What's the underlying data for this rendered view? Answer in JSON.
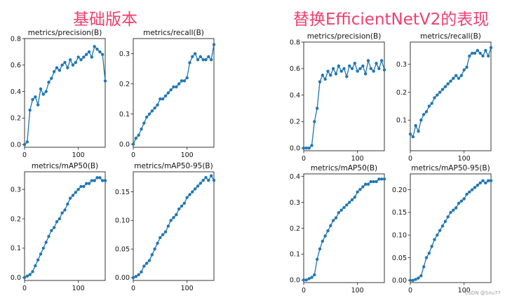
{
  "headings": {
    "left": "基础版本",
    "right": "替换EfficientNetV2的表现"
  },
  "watermark": "CSDN @Snu77",
  "chart_data": [
    {
      "type": "line",
      "title": "metrics/precision(B)",
      "xlim": [
        0,
        150
      ],
      "ylim": [
        -0.02,
        0.8
      ],
      "xticks": [
        0,
        100
      ],
      "yticks": [
        0.0,
        0.2,
        0.4,
        0.6,
        0.8
      ],
      "x": [
        0,
        5,
        10,
        15,
        20,
        25,
        30,
        35,
        40,
        45,
        50,
        55,
        60,
        65,
        70,
        75,
        80,
        85,
        90,
        95,
        100,
        105,
        110,
        115,
        120,
        125,
        130,
        135,
        140,
        145,
        150
      ],
      "series": [
        {
          "values": [
            0.0,
            0.02,
            0.26,
            0.34,
            0.36,
            0.3,
            0.42,
            0.38,
            0.4,
            0.47,
            0.5,
            0.55,
            0.58,
            0.56,
            0.6,
            0.62,
            0.58,
            0.64,
            0.6,
            0.62,
            0.66,
            0.64,
            0.66,
            0.68,
            0.7,
            0.66,
            0.74,
            0.72,
            0.7,
            0.68,
            0.48
          ]
        }
      ]
    },
    {
      "type": "line",
      "title": "metrics/recall(B)",
      "xlim": [
        0,
        150
      ],
      "ylim": [
        -0.01,
        0.35
      ],
      "xticks": [
        0,
        100
      ],
      "yticks": [
        0.0,
        0.1,
        0.2,
        0.3
      ],
      "x": [
        0,
        5,
        10,
        15,
        20,
        25,
        30,
        35,
        40,
        45,
        50,
        55,
        60,
        65,
        70,
        75,
        80,
        85,
        90,
        95,
        100,
        105,
        110,
        115,
        120,
        125,
        130,
        135,
        140,
        145,
        150
      ],
      "series": [
        {
          "values": [
            0.0,
            0.02,
            0.03,
            0.05,
            0.07,
            0.09,
            0.1,
            0.11,
            0.12,
            0.13,
            0.15,
            0.15,
            0.16,
            0.17,
            0.18,
            0.19,
            0.19,
            0.2,
            0.21,
            0.21,
            0.22,
            0.27,
            0.29,
            0.3,
            0.28,
            0.29,
            0.28,
            0.28,
            0.29,
            0.28,
            0.33
          ]
        }
      ]
    },
    {
      "type": "line",
      "title": "metrics/mAP50(B)",
      "xlim": [
        0,
        150
      ],
      "ylim": [
        -0.01,
        0.36
      ],
      "xticks": [
        0,
        100
      ],
      "yticks": [
        0.0,
        0.1,
        0.2,
        0.3
      ],
      "x": [
        0,
        5,
        10,
        15,
        20,
        25,
        30,
        35,
        40,
        45,
        50,
        55,
        60,
        65,
        70,
        75,
        80,
        85,
        90,
        95,
        100,
        105,
        110,
        115,
        120,
        125,
        130,
        135,
        140,
        145,
        150
      ],
      "series": [
        {
          "values": [
            0.0,
            0.005,
            0.01,
            0.02,
            0.04,
            0.06,
            0.08,
            0.1,
            0.12,
            0.14,
            0.16,
            0.17,
            0.19,
            0.2,
            0.22,
            0.23,
            0.25,
            0.27,
            0.28,
            0.29,
            0.3,
            0.31,
            0.31,
            0.32,
            0.32,
            0.33,
            0.33,
            0.34,
            0.34,
            0.33,
            0.33
          ]
        }
      ]
    },
    {
      "type": "line",
      "title": "metrics/mAP50-95(B)",
      "xlim": [
        0,
        150
      ],
      "ylim": [
        -0.005,
        0.185
      ],
      "xticks": [
        0,
        100
      ],
      "yticks": [
        0.0,
        0.05,
        0.1,
        0.15
      ],
      "x": [
        0,
        5,
        10,
        15,
        20,
        25,
        30,
        35,
        40,
        45,
        50,
        55,
        60,
        65,
        70,
        75,
        80,
        85,
        90,
        95,
        100,
        105,
        110,
        115,
        120,
        125,
        130,
        135,
        140,
        145,
        150
      ],
      "series": [
        {
          "values": [
            0.0,
            0.002,
            0.005,
            0.01,
            0.02,
            0.025,
            0.03,
            0.04,
            0.05,
            0.06,
            0.07,
            0.075,
            0.08,
            0.09,
            0.1,
            0.105,
            0.11,
            0.12,
            0.125,
            0.13,
            0.14,
            0.145,
            0.15,
            0.155,
            0.16,
            0.165,
            0.17,
            0.175,
            0.17,
            0.178,
            0.17
          ]
        }
      ]
    },
    {
      "type": "line",
      "title": "metrics/precision(B)",
      "xlim": [
        0,
        150
      ],
      "ylim": [
        -0.02,
        0.8
      ],
      "xticks": [
        0,
        100
      ],
      "yticks": [
        0.0,
        0.2,
        0.4,
        0.6,
        0.8
      ],
      "x": [
        0,
        5,
        10,
        15,
        20,
        25,
        30,
        35,
        40,
        45,
        50,
        55,
        60,
        65,
        70,
        75,
        80,
        85,
        90,
        95,
        100,
        105,
        110,
        115,
        120,
        125,
        130,
        135,
        140,
        145,
        150
      ],
      "series": [
        {
          "values": [
            0.0,
            0.0,
            0.0,
            0.02,
            0.2,
            0.3,
            0.5,
            0.55,
            0.52,
            0.58,
            0.55,
            0.6,
            0.56,
            0.62,
            0.58,
            0.6,
            0.54,
            0.62,
            0.6,
            0.64,
            0.58,
            0.6,
            0.62,
            0.56,
            0.66,
            0.6,
            0.58,
            0.64,
            0.6,
            0.66,
            0.59
          ]
        }
      ]
    },
    {
      "type": "line",
      "title": "metrics/recall(B)",
      "xlim": [
        0,
        150
      ],
      "ylim": [
        -0.01,
        0.38
      ],
      "xticks": [
        0,
        100
      ],
      "yticks": [
        0.1,
        0.2,
        0.3
      ],
      "x": [
        0,
        5,
        10,
        15,
        20,
        25,
        30,
        35,
        40,
        45,
        50,
        55,
        60,
        65,
        70,
        75,
        80,
        85,
        90,
        95,
        100,
        105,
        110,
        115,
        120,
        125,
        130,
        135,
        140,
        145,
        150
      ],
      "series": [
        {
          "values": [
            0.05,
            0.04,
            0.08,
            0.06,
            0.1,
            0.12,
            0.13,
            0.15,
            0.16,
            0.18,
            0.19,
            0.2,
            0.21,
            0.22,
            0.23,
            0.24,
            0.25,
            0.26,
            0.25,
            0.26,
            0.28,
            0.29,
            0.33,
            0.34,
            0.34,
            0.35,
            0.34,
            0.33,
            0.35,
            0.33,
            0.36
          ]
        }
      ]
    },
    {
      "type": "line",
      "title": "metrics/mAP50(B)",
      "xlim": [
        0,
        150
      ],
      "ylim": [
        -0.01,
        0.41
      ],
      "xticks": [
        0,
        100
      ],
      "yticks": [
        0.0,
        0.1,
        0.2,
        0.3,
        0.4
      ],
      "x": [
        0,
        5,
        10,
        15,
        20,
        25,
        30,
        35,
        40,
        45,
        50,
        55,
        60,
        65,
        70,
        75,
        80,
        85,
        90,
        95,
        100,
        105,
        110,
        115,
        120,
        125,
        130,
        135,
        140,
        145,
        150
      ],
      "series": [
        {
          "values": [
            0.0,
            0.0,
            0.005,
            0.01,
            0.02,
            0.08,
            0.12,
            0.15,
            0.17,
            0.19,
            0.21,
            0.23,
            0.24,
            0.26,
            0.27,
            0.28,
            0.29,
            0.3,
            0.31,
            0.32,
            0.34,
            0.35,
            0.36,
            0.37,
            0.37,
            0.38,
            0.38,
            0.38,
            0.39,
            0.39,
            0.39
          ]
        }
      ]
    },
    {
      "type": "line",
      "title": "metrics/mAP50-95(B)",
      "xlim": [
        0,
        150
      ],
      "ylim": [
        -0.005,
        0.235
      ],
      "xticks": [
        0,
        100
      ],
      "yticks": [
        0.0,
        0.05,
        0.1,
        0.15,
        0.2
      ],
      "x": [
        0,
        5,
        10,
        15,
        20,
        25,
        30,
        35,
        40,
        45,
        50,
        55,
        60,
        65,
        70,
        75,
        80,
        85,
        90,
        95,
        100,
        105,
        110,
        115,
        120,
        125,
        130,
        135,
        140,
        145,
        150
      ],
      "series": [
        {
          "values": [
            0.0,
            0.0,
            0.002,
            0.005,
            0.01,
            0.03,
            0.05,
            0.06,
            0.075,
            0.09,
            0.1,
            0.11,
            0.12,
            0.13,
            0.14,
            0.15,
            0.155,
            0.16,
            0.17,
            0.175,
            0.18,
            0.19,
            0.195,
            0.2,
            0.205,
            0.21,
            0.215,
            0.22,
            0.215,
            0.22,
            0.22
          ]
        }
      ]
    }
  ]
}
